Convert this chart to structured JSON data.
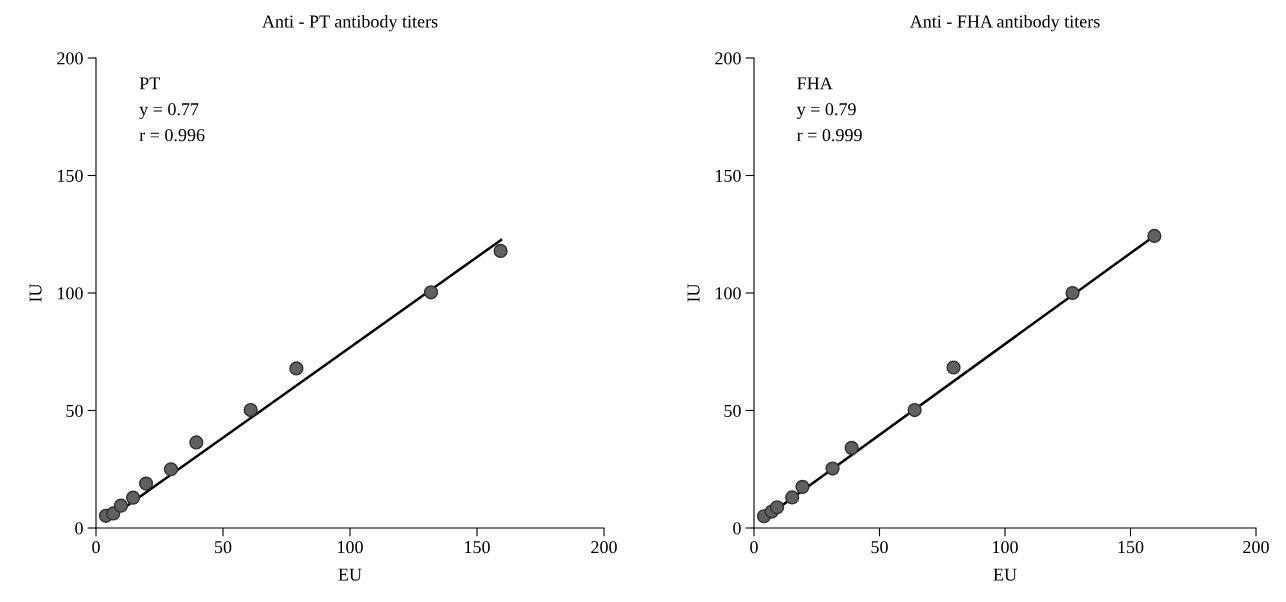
{
  "chart_data": [
    {
      "type": "scatter",
      "title": "Anti - PT antibody titers",
      "xlabel": "EU",
      "ylabel": "IU",
      "xlim": [
        0,
        200
      ],
      "ylim": [
        0,
        200
      ],
      "xticks": [
        0,
        50,
        100,
        150,
        200
      ],
      "yticks": [
        0,
        50,
        100,
        150,
        200
      ],
      "grid": false,
      "legend": false,
      "annotations": [
        "PT",
        "y = 0.77",
        "r = 0.996"
      ],
      "series": [
        {
          "type": "scatter",
          "marker": "circle",
          "color": "#606060",
          "x": [
            3.9,
            6.8,
            9.8,
            14.6,
            19.7,
            29.5,
            39.5,
            60.9,
            78.9,
            131.9,
            159.3
          ],
          "values": [
            5.2,
            6.2,
            9.5,
            12.9,
            18.9,
            25,
            36.4,
            50.2,
            67.9,
            100.3,
            117.9
          ]
        },
        {
          "type": "line",
          "color": "#000000",
          "line_style": "solid",
          "x": [
            12,
            159.5
          ],
          "values": [
            9.2,
            122.6
          ]
        }
      ]
    },
    {
      "type": "scatter",
      "title": "Anti - FHA antibody titers",
      "xlabel": "EU",
      "ylabel": "IU",
      "xlim": [
        0,
        200
      ],
      "ylim": [
        0,
        200
      ],
      "xticks": [
        0,
        50,
        100,
        150,
        200
      ],
      "yticks": [
        0,
        50,
        100,
        150,
        200
      ],
      "grid": false,
      "legend": false,
      "annotations": [
        "FHA",
        "y = 0.79",
        "r = 0.999"
      ],
      "series": [
        {
          "type": "scatter",
          "marker": "circle",
          "color": "#606060",
          "x": [
            4.0,
            7.1,
            9.2,
            15.2,
            19.3,
            31.3,
            38.9,
            64.0,
            79.5,
            126.9,
            159.5
          ],
          "values": [
            5.0,
            7.0,
            8.8,
            13.0,
            17.5,
            25.3,
            34.1,
            50.2,
            68.3,
            100,
            124.3
          ]
        },
        {
          "type": "line",
          "color": "#000000",
          "line_style": "solid",
          "x": [
            7.8,
            159.5
          ],
          "values": [
            7.0,
            124.3
          ]
        }
      ]
    }
  ]
}
